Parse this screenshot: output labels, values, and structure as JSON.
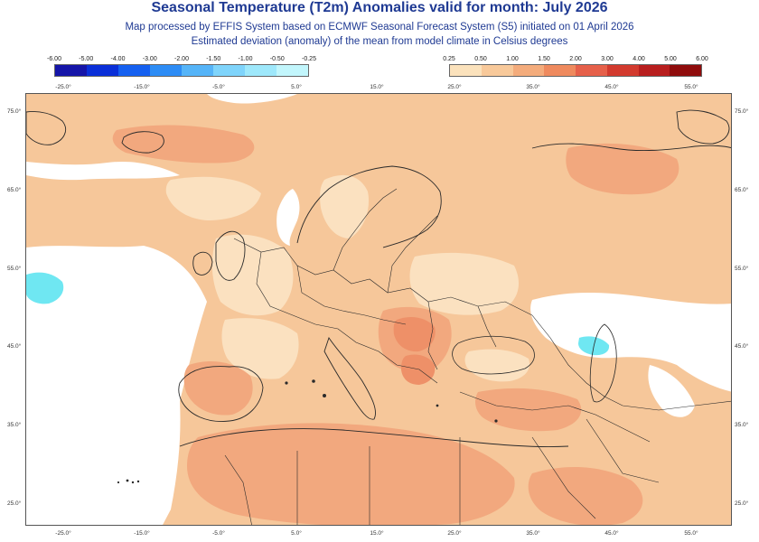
{
  "title": "Seasonal Temperature (T2m) Anomalies valid for month: July 2026",
  "subtitle_1": "Map processed by EFFIS System based on ECMWF Seasonal Forecast System (S5) initiated on 01 April 2026",
  "subtitle_2": "Estimated deviation (anomaly) of the mean from model climate in Celsius degrees",
  "legend_negative": {
    "ticks": [
      "-6.00",
      "-5.00",
      "-4.00",
      "-3.00",
      "-2.00",
      "-1.50",
      "-1.00",
      "-0.50",
      "-0.25"
    ],
    "colors": [
      "#1515a8",
      "#0a2fd8",
      "#1560f0",
      "#2d8cf5",
      "#55b4f8",
      "#7fd4fb",
      "#9ee8fb",
      "#c2f6fc"
    ]
  },
  "legend_positive": {
    "ticks": [
      "0.25",
      "0.50",
      "1.00",
      "1.50",
      "2.00",
      "3.00",
      "4.00",
      "5.00",
      "6.00"
    ],
    "colors": [
      "#fbe2bc",
      "#f8c99a",
      "#f4ac7c",
      "#ef8a5e",
      "#e6604a",
      "#d23a2e",
      "#b81e1e",
      "#8f0c0c"
    ]
  },
  "longitude_labels": [
    "-25.0°",
    "-15.0°",
    "-5.0°",
    "5.0°",
    "15.0°",
    "25.0°",
    "35.0°",
    "45.0°",
    "55.0°"
  ],
  "latitude_labels": [
    "75.0°",
    "65.0°",
    "55.0°",
    "45.0°",
    "35.0°",
    "25.0°"
  ],
  "map_colors": {
    "base": "#f6c79a",
    "light": "#fbe1c0",
    "medium": "#f2a87e",
    "strong": "#ee9068",
    "neutral": "#ffffff",
    "cool": "#6fe7f2",
    "coast": "#2a2a2a"
  }
}
